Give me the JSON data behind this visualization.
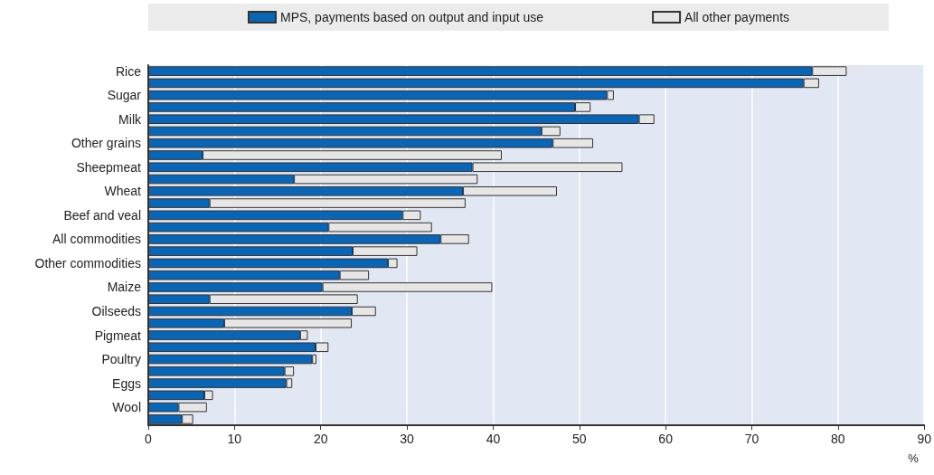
{
  "chart_data": {
    "type": "bar",
    "orientation": "horizontal",
    "stacked": true,
    "xlabel": "%",
    "categories": [
      "Rice",
      null,
      "Sugar",
      null,
      "Milk",
      null,
      "Other grains",
      null,
      "Sheepmeat",
      null,
      "Wheat",
      null,
      "Beef and veal",
      null,
      "All commodities",
      null,
      "Other commodities",
      null,
      "Maize",
      null,
      "Oilseeds",
      null,
      "Pigmeat",
      null,
      "Poultry",
      null,
      "Eggs",
      null,
      "Wool",
      null
    ],
    "series": [
      {
        "name": "MPS, payments based on output and input use",
        "color": "#0a66b5",
        "values": [
          77,
          76,
          53.2,
          49.5,
          56.9,
          45.6,
          46.9,
          6.3,
          37.6,
          16.9,
          36.5,
          7.1,
          29.5,
          20.9,
          33.9,
          23.7,
          27.8,
          22.2,
          20.2,
          7.1,
          23.6,
          8.8,
          17.6,
          19.4,
          19,
          15.8,
          16,
          6.5,
          3.5,
          3.9
        ]
      },
      {
        "name": "All other payments",
        "color": "#e6e6e6",
        "values": [
          4,
          1.8,
          0.8,
          1.8,
          1.8,
          2.2,
          4.7,
          34.7,
          17.4,
          21.3,
          10.9,
          29.7,
          2.1,
          12,
          3.3,
          7.5,
          1.1,
          3.4,
          19.7,
          17.2,
          2.8,
          14.8,
          0.9,
          1.5,
          0.5,
          1.1,
          0.7,
          1,
          3.3,
          1.3
        ]
      }
    ],
    "xlim": [
      0,
      90
    ],
    "xticks": [
      0,
      10,
      20,
      30,
      40,
      50,
      60,
      70,
      80,
      90
    ],
    "grid": "x",
    "legend": "top"
  }
}
